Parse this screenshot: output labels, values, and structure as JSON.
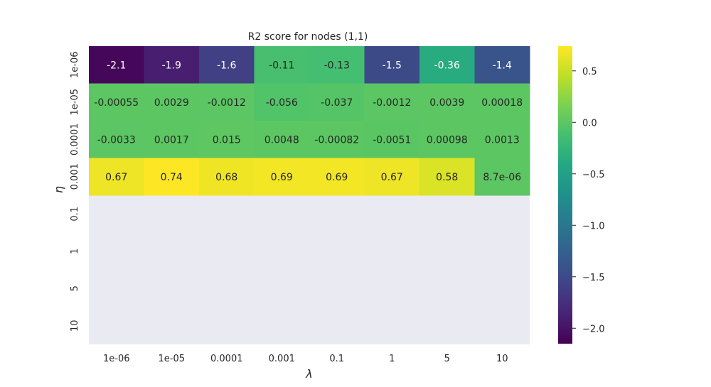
{
  "chart_data": {
    "type": "heatmap",
    "title": "R2 score for nodes (1,1)",
    "xlabel": "λ",
    "ylabel": "η",
    "x_categories": [
      "1e-06",
      "1e-05",
      "0.0001",
      "0.001",
      "0.1",
      "1",
      "5",
      "10"
    ],
    "y_categories": [
      "1e-06",
      "1e-05",
      "0.0001",
      "0.001",
      "0.1",
      "1",
      "5",
      "10"
    ],
    "values": [
      [
        -2.1,
        -1.9,
        -1.6,
        -0.11,
        -0.13,
        -1.5,
        -0.36,
        -1.4
      ],
      [
        -0.00055,
        0.0029,
        -0.0012,
        -0.056,
        -0.037,
        -0.0012,
        0.0039,
        0.00018
      ],
      [
        -0.0033,
        0.0017,
        0.015,
        0.0048,
        -0.00082,
        -0.0051,
        0.00098,
        0.0013
      ],
      [
        0.67,
        0.74,
        0.68,
        0.69,
        0.69,
        0.67,
        0.58,
        8.7e-06
      ],
      [
        null,
        null,
        null,
        null,
        null,
        null,
        null,
        null
      ],
      [
        null,
        null,
        null,
        null,
        null,
        null,
        null,
        null
      ],
      [
        null,
        null,
        null,
        null,
        null,
        null,
        null,
        null
      ],
      [
        null,
        null,
        null,
        null,
        null,
        null,
        null,
        null
      ]
    ],
    "annotations": [
      [
        "-2.1",
        "-1.9",
        "-1.6",
        "-0.11",
        "-0.13",
        "-1.5",
        "-0.36",
        "-1.4"
      ],
      [
        "-0.00055",
        "0.0029",
        "-0.0012",
        "-0.056",
        "-0.037",
        "-0.0012",
        "0.0039",
        "0.00018"
      ],
      [
        "-0.0033",
        "0.0017",
        "0.015",
        "0.0048",
        "-0.00082",
        "-0.0051",
        "0.00098",
        "0.0013"
      ],
      [
        "0.67",
        "0.74",
        "0.68",
        "0.69",
        "0.69",
        "0.67",
        "0.58",
        "8.7e-06"
      ],
      [
        "",
        "",
        "",
        "",
        "",
        "",
        "",
        ""
      ],
      [
        "",
        "",
        "",
        "",
        "",
        "",
        "",
        ""
      ],
      [
        "",
        "",
        "",
        "",
        "",
        "",
        "",
        ""
      ],
      [
        "",
        "",
        "",
        "",
        "",
        "",
        "",
        ""
      ]
    ],
    "colormap": "viridis",
    "colorbar": {
      "range": [
        -2.15,
        0.74
      ],
      "ticks": [
        0.5,
        0.0,
        -0.5,
        -1.0,
        -1.5,
        -2.0
      ],
      "tick_labels": [
        "0.5",
        "0.0",
        "−0.5",
        "−1.0",
        "−1.5",
        "−2.0"
      ]
    },
    "missing_color": "#eaeaf2"
  }
}
